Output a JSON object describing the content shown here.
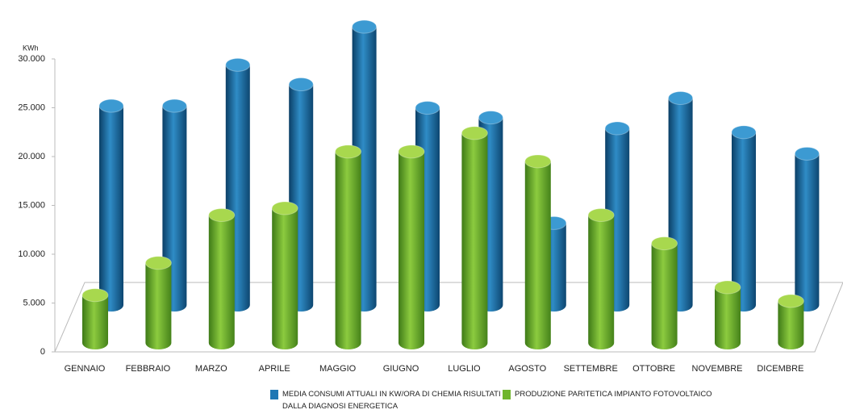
{
  "chart_data": {
    "type": "bar3d",
    "y_label": "KWh",
    "categories": [
      "GENNAIO",
      "FEBBRAIO",
      "MARZO",
      "APRILE",
      "MAGGIO",
      "GIUGNO",
      "LUGLIO",
      "AGOSTO",
      "SETTEMBRE",
      "OTTOBRE",
      "NOVEMBRE",
      "DICEMBRE"
    ],
    "series": [
      {
        "name": "MEDIA CONSUMI ATTUALI  IN KW/ORA DI CHEMIA RISULTATI DALLA DIAGNOSI ENERGETICA",
        "color": "#1f77b4",
        "values": [
          20400,
          20400,
          24600,
          22600,
          28500,
          20200,
          19200,
          8400,
          18100,
          21200,
          17700,
          15500
        ]
      },
      {
        "name": "PRODUZIONE PARITETICA IMPIANTO FOTOVOLTAICO",
        "color": "#6fb52c",
        "values": [
          4900,
          8200,
          13100,
          13800,
          19600,
          19600,
          21500,
          18600,
          13100,
          10200,
          5700,
          4300
        ]
      }
    ],
    "ylim": [
      0,
      30000
    ],
    "yticks": [
      0,
      {
        "value": 5000,
        "label": "5.000"
      },
      {
        "value": 10000,
        "label": "10.000"
      },
      {
        "value": 15000,
        "label": "15.000"
      },
      {
        "value": 20000,
        "label": "20.000"
      },
      {
        "value": 25000,
        "label": "25.000"
      },
      {
        "value": 30000,
        "label": "30.000"
      }
    ]
  }
}
